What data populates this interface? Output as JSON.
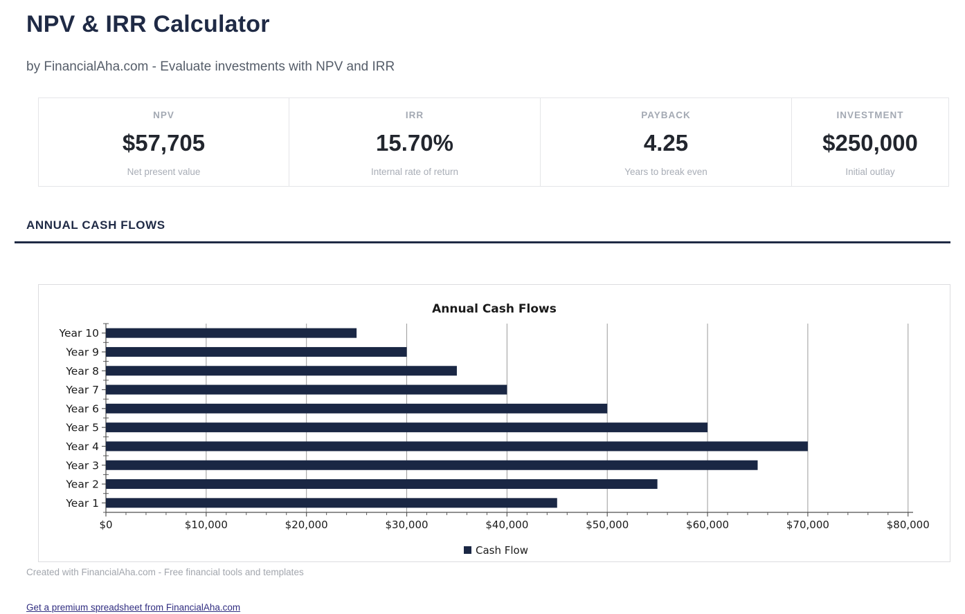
{
  "header": {
    "title": "NPV & IRR Calculator",
    "subtitle": "by FinancialAha.com - Evaluate investments with NPV and IRR"
  },
  "stats": [
    {
      "label": "NPV",
      "value": "$57,705",
      "sub": "Net present value"
    },
    {
      "label": "IRR",
      "value": "15.70%",
      "sub": "Internal rate of return"
    },
    {
      "label": "PAYBACK",
      "value": "4.25",
      "sub": "Years to break even"
    },
    {
      "label": "INVESTMENT",
      "value": "$250,000",
      "sub": "Initial outlay"
    }
  ],
  "section": {
    "heading": "ANNUAL CASH FLOWS"
  },
  "chart_data": {
    "type": "bar",
    "orientation": "horizontal",
    "title": "Annual Cash Flows",
    "categories": [
      "Year 1",
      "Year 2",
      "Year 3",
      "Year 4",
      "Year 5",
      "Year 6",
      "Year 7",
      "Year 8",
      "Year 9",
      "Year 10"
    ],
    "series": [
      {
        "name": "Cash Flow",
        "values": [
          45000,
          55000,
          65000,
          70000,
          60000,
          50000,
          40000,
          35000,
          30000,
          25000
        ]
      }
    ],
    "x_ticks": {
      "values": [
        0,
        10000,
        20000,
        30000,
        40000,
        50000,
        60000,
        70000,
        80000
      ],
      "labels": [
        "$0",
        "$10,000",
        "$20,000",
        "$30,000",
        "$40,000",
        "$50,000",
        "$60,000",
        "$70,000",
        "$80,000"
      ]
    },
    "x_minor_step": 2000,
    "xlim": [
      0,
      80500
    ],
    "grid": true,
    "legend_position": "bottom",
    "legend_label": "Cash Flow",
    "colors": {
      "bar": "#1a2744",
      "grid": "#9a9a9a",
      "spine": "#4d4d4d",
      "tick": "#5a5a5a",
      "text": "#1a1a1a"
    }
  },
  "footer": {
    "credit": "Created with FinancialAha.com - Free financial tools and templates",
    "link": "Get a premium spreadsheet from FinancialAha.com"
  }
}
